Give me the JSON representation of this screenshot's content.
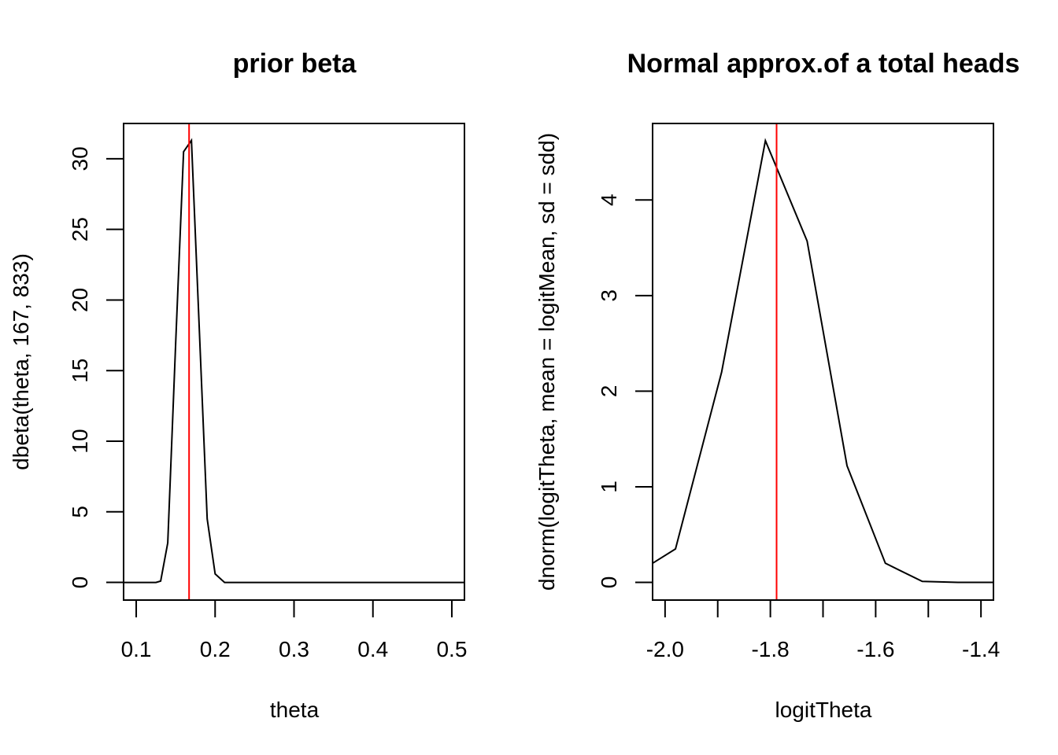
{
  "chart_data": [
    {
      "type": "line",
      "title": "prior beta",
      "xlabel": "theta",
      "ylabel": "dbeta(theta, 167, 833)",
      "xlim": [
        0.084,
        0.516
      ],
      "ylim": [
        -1.25,
        32.5
      ],
      "xticks": [
        0.1,
        0.2,
        0.3,
        0.4,
        0.5
      ],
      "xtick_labels": [
        "0.1",
        "0.2",
        "0.3",
        "0.4",
        "0.5"
      ],
      "yticks": [
        0,
        5,
        10,
        15,
        20,
        25,
        30
      ],
      "ytick_labels": [
        "0",
        "5",
        "10",
        "15",
        "20",
        "25",
        "30"
      ],
      "grid": false,
      "series": [
        {
          "color": "#000000",
          "x": [
            0.084,
            0.1,
            0.115,
            0.125,
            0.131,
            0.14,
            0.15,
            0.16,
            0.17,
            0.19,
            0.2,
            0.212,
            0.3,
            0.4,
            0.516
          ],
          "y": [
            0,
            0,
            0,
            0,
            0.1,
            2.8,
            17.0,
            30.5,
            31.3,
            4.5,
            0.6,
            0,
            0,
            0,
            0
          ]
        }
      ],
      "vlines": [
        {
          "x": 0.167,
          "color": "#ff0000"
        }
      ]
    },
    {
      "type": "line",
      "title": "Normal approx.of a total heads",
      "xlabel": "logitTheta",
      "ylabel": "dnorm(logitTheta, mean = logitMean, sd = sdd)",
      "xlim": [
        -2.0237,
        -1.3763
      ],
      "ylim": [
        -0.185,
        4.8
      ],
      "xticks": [
        -2.0,
        -1.9,
        -1.8,
        -1.7,
        -1.6,
        -1.5,
        -1.4
      ],
      "xtick_labels": [
        "-2.0",
        "",
        "-1.8",
        "",
        "-1.6",
        "",
        "-1.4"
      ],
      "yticks": [
        0,
        1,
        2,
        3,
        4
      ],
      "ytick_labels": [
        "0",
        "1",
        "2",
        "3",
        "4"
      ],
      "grid": false,
      "series": [
        {
          "color": "#000000",
          "x": [
            -2.0237,
            -1.9802,
            -1.8926,
            -1.8095,
            -1.7302,
            -1.6544,
            -1.5816,
            -1.5115,
            -1.4439,
            -1.3763
          ],
          "y": [
            0.2,
            0.35,
            2.2,
            4.62,
            3.57,
            1.22,
            0.2,
            0.01,
            0.0,
            0.0
          ]
        }
      ],
      "vlines": [
        {
          "x": -1.7882,
          "color": "#ff0000"
        }
      ]
    }
  ]
}
